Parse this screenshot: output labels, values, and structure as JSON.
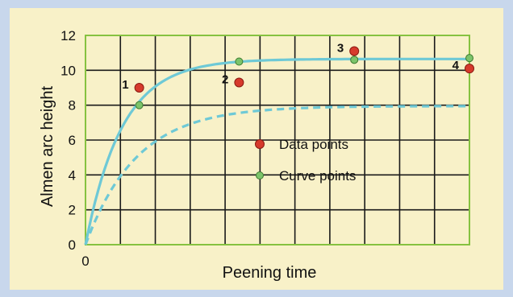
{
  "chart_data": {
    "type": "line",
    "xlabel": "Peening time",
    "ylabel": "Almen arc height",
    "ylim": [
      0,
      12
    ],
    "xlim": [
      0,
      10
    ],
    "y_ticks": [
      "0",
      "2",
      "4",
      "6",
      "8",
      "10",
      "12"
    ],
    "x_ticks": [
      "0"
    ],
    "grid": true,
    "legend": {
      "placement": "center",
      "entries": [
        {
          "label": "Data points",
          "color": "#d63a2c"
        },
        {
          "label": "Curve points",
          "color": "#7cc46a"
        }
      ]
    },
    "data_points": [
      {
        "label": "1",
        "x": 1.4,
        "y": 9.0
      },
      {
        "label": "2",
        "x": 4.0,
        "y": 9.3
      },
      {
        "label": "3",
        "x": 7.0,
        "y": 11.1
      },
      {
        "label": "4",
        "x": 10.0,
        "y": 10.1
      }
    ],
    "curve_points": [
      {
        "x": 1.4,
        "y": 8.0
      },
      {
        "x": 4.0,
        "y": 10.5
      },
      {
        "x": 7.0,
        "y": 10.6
      },
      {
        "x": 10.0,
        "y": 10.7
      }
    ],
    "series": [
      {
        "style": "solid",
        "color": "#6ec9d6",
        "asymptote": 10.65,
        "rate": 1.05
      },
      {
        "style": "dashed",
        "color": "#6ec9d6",
        "asymptote": 7.95,
        "rate": 0.75
      }
    ],
    "colors": {
      "plot_background": "#f8f1c8",
      "grid": "#1a1a1a",
      "border": "#86c240",
      "outer_background": "#c8d7ec"
    }
  }
}
